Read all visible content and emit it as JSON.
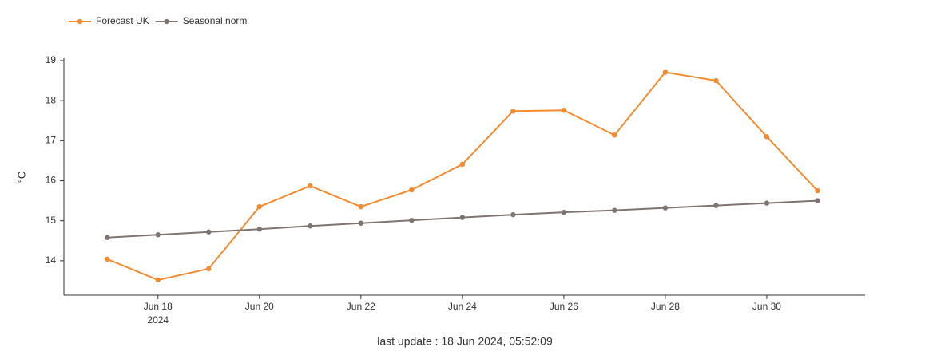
{
  "chart_data": {
    "type": "line",
    "x": [
      "2024-06-17",
      "2024-06-18",
      "2024-06-19",
      "2024-06-20",
      "2024-06-21",
      "2024-06-22",
      "2024-06-23",
      "2024-06-24",
      "2024-06-25",
      "2024-06-26",
      "2024-06-27",
      "2024-06-28",
      "2024-06-29",
      "2024-06-30",
      "2024-07-01"
    ],
    "series": [
      {
        "name": "Forecast UK",
        "color": "#f58a2e",
        "values": [
          14.04,
          13.52,
          13.8,
          15.35,
          15.87,
          15.35,
          15.77,
          16.41,
          17.74,
          17.76,
          17.14,
          18.71,
          18.5,
          17.1,
          15.75
        ]
      },
      {
        "name": "Seasonal norm",
        "color": "#7f7470",
        "values": [
          14.58,
          14.65,
          14.72,
          14.79,
          14.87,
          14.94,
          15.01,
          15.08,
          15.15,
          15.21,
          15.26,
          15.32,
          15.38,
          15.44,
          15.5
        ]
      }
    ],
    "ylabel": "°C",
    "ylim": [
      13.14,
      19.06
    ],
    "yticks": [
      14,
      15,
      16,
      17,
      18,
      19
    ],
    "xlim": [
      "2024-06-16T03:30:00Z",
      "2024-07-01T22:30:00Z"
    ],
    "xticks": [
      {
        "value": "2024-06-18",
        "label": "Jun 18"
      },
      {
        "value": "2024-06-20",
        "label": "Jun 20"
      },
      {
        "value": "2024-06-22",
        "label": "Jun 22"
      },
      {
        "value": "2024-06-24",
        "label": "Jun 24"
      },
      {
        "value": "2024-06-26",
        "label": "Jun 26"
      },
      {
        "value": "2024-06-28",
        "label": "Jun 28"
      },
      {
        "value": "2024-06-30",
        "label": "Jun 30"
      }
    ],
    "x_year": "2024",
    "annotation": "last update : 18 Jun 2024, 05:52:09",
    "legend": "top-left",
    "grid": false
  }
}
